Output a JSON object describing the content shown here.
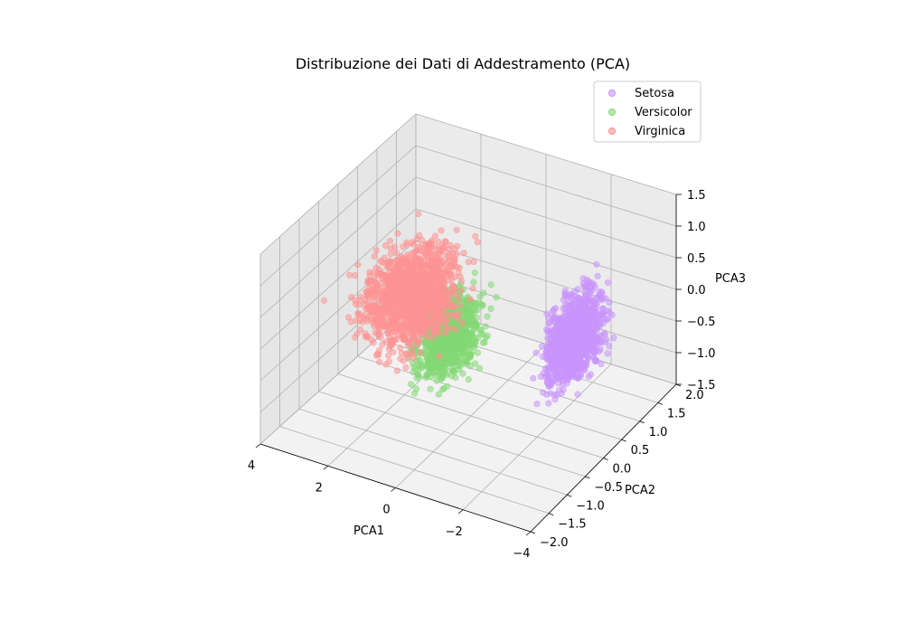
{
  "chart_data": {
    "type": "scatter",
    "projection": "3d",
    "title": "Distribuzione dei Dati di Addestramento (PCA)",
    "xlabel": "PCA1",
    "ylabel": "PCA2",
    "zlabel": "PCA3",
    "xlim": [
      -4,
      4
    ],
    "ylim": [
      -2.0,
      2.0
    ],
    "zlim": [
      -1.5,
      1.5
    ],
    "xticks": [
      "−4",
      "−2",
      "0",
      "2",
      "4"
    ],
    "yticks": [
      "−2.0",
      "−1.5",
      "−1.0",
      "−0.5",
      "0.0",
      "0.5",
      "1.0",
      "1.5",
      "2.0"
    ],
    "zticks": [
      "−1.5",
      "−1.0",
      "−0.5",
      "0.0",
      "0.5",
      "1.0",
      "1.5"
    ],
    "grid": true,
    "legend_position": "top-right",
    "series": [
      {
        "name": "Setosa",
        "color": "#c994fb",
        "cluster": {
          "x_range": [
            -3.4,
            -2.2
          ],
          "y_range": [
            -0.8,
            1.3
          ],
          "z_range": [
            -0.9,
            1.0
          ]
        }
      },
      {
        "name": "Versicolor",
        "color": "#84d975",
        "cluster": {
          "x_range": [
            -0.6,
            1.4
          ],
          "y_range": [
            -1.3,
            0.8
          ],
          "z_range": [
            -1.0,
            0.7
          ]
        }
      },
      {
        "name": "Virginica",
        "color": "#fd9393",
        "cluster": {
          "x_range": [
            0.5,
            3.6
          ],
          "y_range": [
            -1.1,
            1.6
          ],
          "z_range": [
            -1.0,
            0.9
          ]
        }
      }
    ]
  }
}
